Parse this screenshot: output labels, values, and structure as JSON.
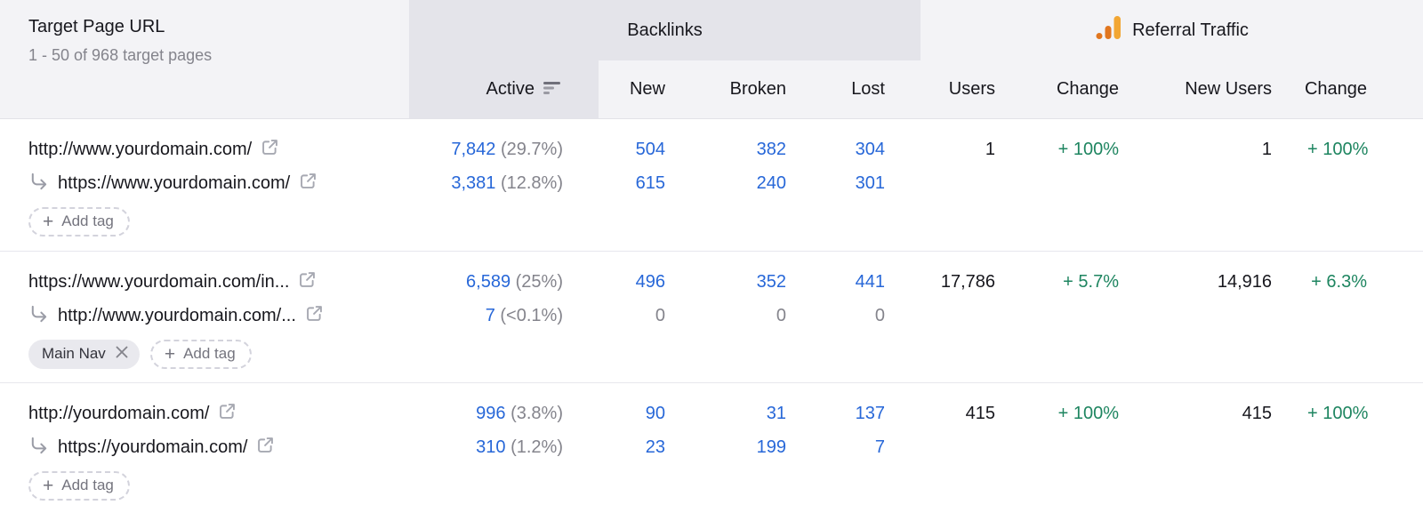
{
  "table": {
    "url_column": {
      "title": "Target Page URL",
      "range_label": "1 - 50 of 968 target pages"
    },
    "groups": {
      "backlinks": "Backlinks",
      "referral": "Referral Traffic"
    },
    "columns": {
      "active": "Active",
      "new": "New",
      "broken": "Broken",
      "lost": "Lost",
      "users": "Users",
      "change": "Change",
      "new_users": "New Users",
      "change_2": "Change"
    }
  },
  "actions": {
    "add_tag": "Add tag",
    "add_glyph": "+"
  },
  "icons": {
    "sort": "sort-descending-bars",
    "external_link": "external-link-box-arrow",
    "redirect": "redirect-elbow-arrow",
    "referral": "analytics-bar-chart",
    "remove_tag": "x-close"
  },
  "colors": {
    "link_blue": "#2767d8",
    "positive_green": "#1e8560",
    "muted_gray": "#84848c",
    "header_bg": "#f3f3f6",
    "band_bg": "#e4e4ea",
    "analytics_orange": "#e1761f",
    "analytics_amber": "#f2a633"
  },
  "rows": [
    {
      "url": "http://www.yourdomain.com/",
      "redirect_url": "https://www.yourdomain.com/",
      "tags": [],
      "active": [
        {
          "value": "7,842",
          "pct": "(29.7%)"
        },
        {
          "value": "3,381",
          "pct": "(12.8%)"
        }
      ],
      "new": [
        "504",
        "615"
      ],
      "broken": [
        "382",
        "240"
      ],
      "lost": [
        "304",
        "301"
      ],
      "users": "1",
      "users_change": "+ 100%",
      "new_users": "1",
      "new_users_change": "+ 100%"
    },
    {
      "url": "https://www.yourdomain.com/in...",
      "redirect_url": "http://www.yourdomain.com/...",
      "tags": [
        "Main Nav"
      ],
      "active": [
        {
          "value": "6,589",
          "pct": "(25%)"
        },
        {
          "value": "7",
          "pct": "(<0.1%)"
        }
      ],
      "new": [
        "496",
        "0"
      ],
      "broken": [
        "352",
        "0"
      ],
      "lost": [
        "441",
        "0"
      ],
      "users": "17,786",
      "users_change": "+ 5.7%",
      "new_users": "14,916",
      "new_users_change": "+ 6.3%"
    },
    {
      "url": "http://yourdomain.com/",
      "redirect_url": "https://yourdomain.com/",
      "tags": [],
      "active": [
        {
          "value": "996",
          "pct": "(3.8%)"
        },
        {
          "value": "310",
          "pct": "(1.2%)"
        }
      ],
      "new": [
        "90",
        "23"
      ],
      "broken": [
        "31",
        "199"
      ],
      "lost": [
        "137",
        "7"
      ],
      "users": "415",
      "users_change": "+ 100%",
      "new_users": "415",
      "new_users_change": "+ 100%"
    }
  ]
}
